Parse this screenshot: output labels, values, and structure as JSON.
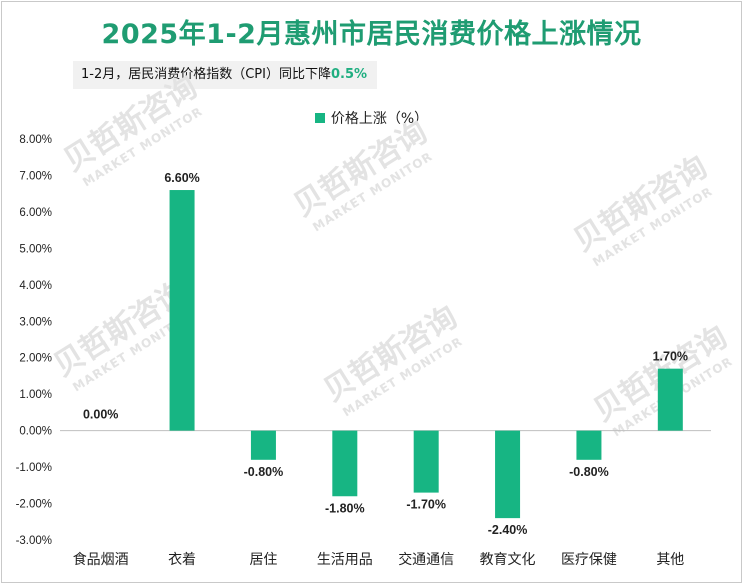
{
  "title": "2025年1-2月惠州市居民消费价格上涨情况",
  "subtitle": {
    "text": "1-2月，居民消费价格指数（CPI）同比下降",
    "highlight": "0.5%"
  },
  "watermark": {
    "cn": "贝哲斯咨询",
    "en": "MARKET MONITOR"
  },
  "colors": {
    "title": "#1f9c72",
    "bar": "#17b583",
    "highlight": "#1fae80"
  },
  "chart_data": {
    "type": "bar",
    "categories": [
      "食品烟酒",
      "衣着",
      "居住",
      "生活用品",
      "交通通信",
      "教育文化",
      "医疗保健",
      "其他"
    ],
    "series": [
      {
        "name": "价格上涨（%）",
        "values": [
          0.0,
          6.6,
          -0.8,
          -1.8,
          -1.7,
          -2.4,
          -0.8,
          1.7
        ]
      }
    ],
    "data_labels": [
      "0.00%",
      "6.60%",
      "-0.80%",
      "-1.80%",
      "-1.70%",
      "-2.40%",
      "-0.80%",
      "1.70%"
    ],
    "y_ticks": [
      "8.00%",
      "7.00%",
      "6.00%",
      "5.00%",
      "4.00%",
      "3.00%",
      "2.00%",
      "1.00%",
      "0.00%",
      "-1.00%",
      "-2.00%",
      "-3.00%"
    ],
    "ylim": [
      -3,
      8
    ],
    "grid": false,
    "legend_position": "top-center"
  }
}
